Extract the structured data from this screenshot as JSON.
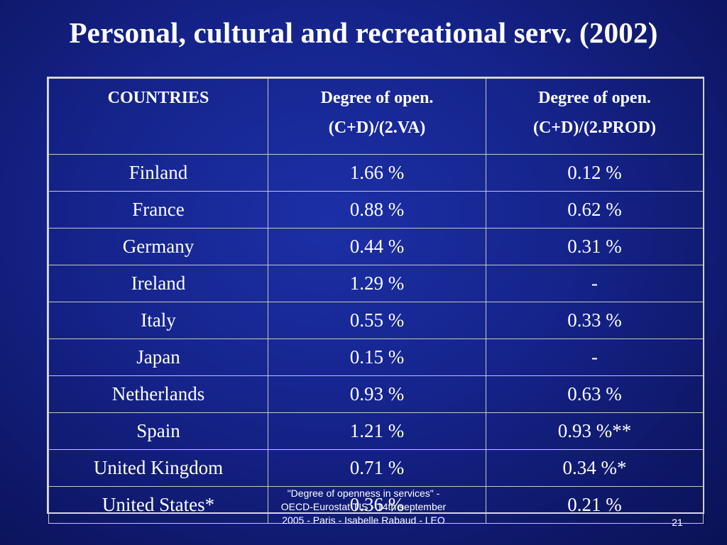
{
  "slide": {
    "title": "Personal, cultural and recreational serv. (2002)",
    "footer_lines": [
      "\"Degree of openness in services\" -",
      "OECD-Eurostat  TIS - 14th september",
      "2005 - Paris - Isabelle Rabaud  - LEO"
    ],
    "page_number": "21",
    "background_color": "#15238a"
  },
  "table": {
    "headers": [
      [
        "COUNTRIES"
      ],
      [
        "Degree of open.",
        "(C+D)/(2.VA)"
      ],
      [
        "Degree of open.",
        "(C+D)/(2.PROD)"
      ]
    ],
    "rows": [
      [
        "Finland",
        "1.66 %",
        "0.12 %"
      ],
      [
        "France",
        "0.88 %",
        "0.62 %"
      ],
      [
        "Germany",
        "0.44 %",
        "0.31 %"
      ],
      [
        "Ireland",
        "1.29 %",
        "-"
      ],
      [
        "Italy",
        "0.55 %",
        "0.33 %"
      ],
      [
        "Japan",
        "0.15 %",
        "-"
      ],
      [
        "Netherlands",
        "0.93 %",
        "0.63 %"
      ],
      [
        "Spain",
        "1.21 %",
        "0.93 %**"
      ],
      [
        "United Kingdom",
        "0.71 %",
        "0.34 %*"
      ],
      [
        "United States*",
        "0.36 %",
        "0.21 %"
      ]
    ]
  }
}
